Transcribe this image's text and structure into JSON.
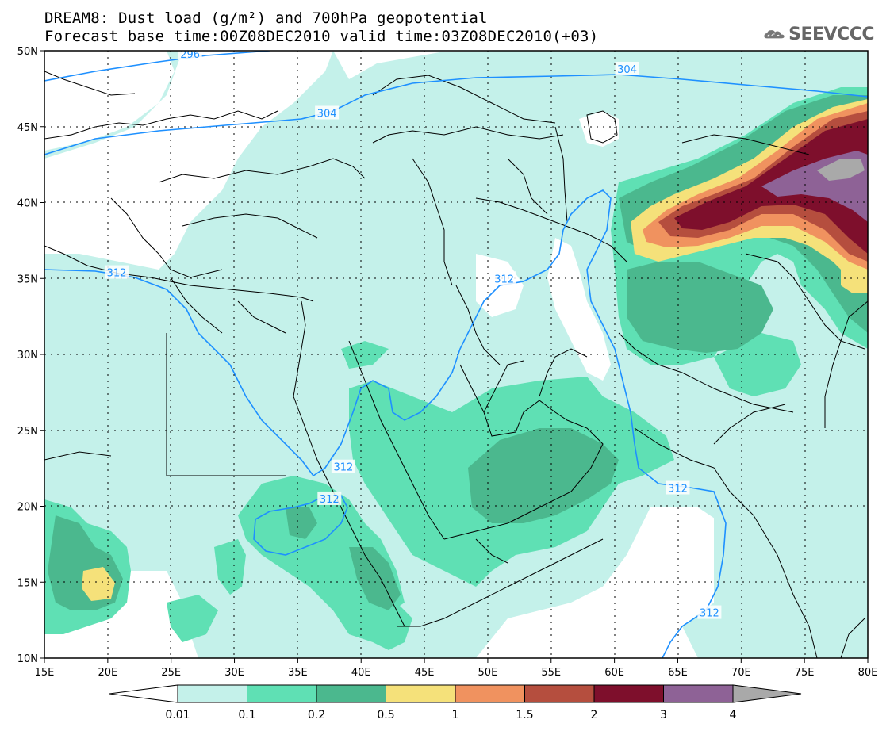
{
  "header": {
    "title_line1": "DREAM8: Dust load (g/m²) and 700hPa geopotential",
    "title_line2": "Forecast base time:00Z08DEC2010 valid time:03Z08DEC2010(+03)",
    "logo_text": "SEEVCCC"
  },
  "map": {
    "lat_labels": [
      "50N",
      "45N",
      "40N",
      "35N",
      "30N",
      "25N",
      "20N",
      "15N",
      "10N"
    ],
    "lon_labels": [
      "15E",
      "20E",
      "25E",
      "30E",
      "35E",
      "40E",
      "45E",
      "50E",
      "55E",
      "60E",
      "65E",
      "70E",
      "75E",
      "80E"
    ],
    "lat_range": [
      10,
      50
    ],
    "lon_range": [
      15,
      80
    ],
    "contour_labels": [
      {
        "text": "296",
        "lon": 26.5,
        "lat": 49.8
      },
      {
        "text": "304",
        "lon": 37.3,
        "lat": 45.9
      },
      {
        "text": "304",
        "lon": 61.0,
        "lat": 48.8
      },
      {
        "text": "312",
        "lon": 20.7,
        "lat": 35.4
      },
      {
        "text": "312",
        "lon": 51.3,
        "lat": 35.0
      },
      {
        "text": "312",
        "lon": 38.6,
        "lat": 22.6
      },
      {
        "text": "312",
        "lon": 37.5,
        "lat": 20.5
      },
      {
        "text": "312",
        "lon": 65.0,
        "lat": 21.2
      },
      {
        "text": "312",
        "lon": 67.5,
        "lat": 13.0
      }
    ]
  },
  "colorbar": {
    "labels": [
      "0.01",
      "0.1",
      "0.2",
      "0.5",
      "1",
      "1.5",
      "2",
      "3",
      "4"
    ],
    "colors": [
      "#c4f1ea",
      "#5fe0b4",
      "#4bb88e",
      "#f5e17a",
      "#f0925f",
      "#b54e3e",
      "#7e0f2c",
      "#8e6296",
      "#a9a9a9"
    ]
  }
}
